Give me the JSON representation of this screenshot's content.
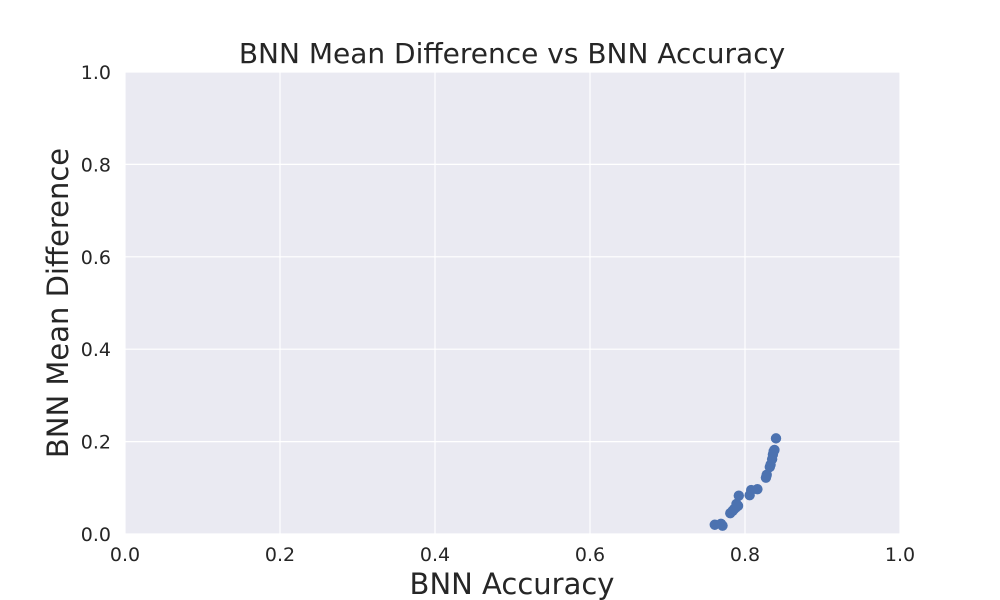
{
  "chart_data": {
    "type": "scatter",
    "title": "BNN Mean Difference vs BNN Accuracy",
    "xlabel": "BNN Accuracy",
    "ylabel": "BNN Mean Difference",
    "xlim": [
      0.0,
      1.0
    ],
    "ylim": [
      0.0,
      1.0
    ],
    "xticks": [
      "0.0",
      "0.2",
      "0.4",
      "0.6",
      "0.8",
      "1.0"
    ],
    "yticks": [
      "0.0",
      "0.2",
      "0.4",
      "0.6",
      "0.8",
      "1.0"
    ],
    "grid": true,
    "legend": "none",
    "colors": {
      "background": "#eaeaf2",
      "grid": "#ffffff",
      "point": "#4c72b0"
    },
    "series": [
      {
        "points": [
          [
            0.761,
            0.02
          ],
          [
            0.769,
            0.022
          ],
          [
            0.771,
            0.018
          ],
          [
            0.781,
            0.045
          ],
          [
            0.784,
            0.05
          ],
          [
            0.786,
            0.054
          ],
          [
            0.788,
            0.057
          ],
          [
            0.789,
            0.065
          ],
          [
            0.791,
            0.061
          ],
          [
            0.792,
            0.083
          ],
          [
            0.806,
            0.084
          ],
          [
            0.808,
            0.095
          ],
          [
            0.816,
            0.097
          ],
          [
            0.827,
            0.122
          ],
          [
            0.828,
            0.128
          ],
          [
            0.832,
            0.145
          ],
          [
            0.833,
            0.15
          ],
          [
            0.835,
            0.162
          ],
          [
            0.836,
            0.172
          ],
          [
            0.838,
            0.182
          ],
          [
            0.837,
            0.179
          ],
          [
            0.84,
            0.207
          ]
        ]
      }
    ]
  }
}
